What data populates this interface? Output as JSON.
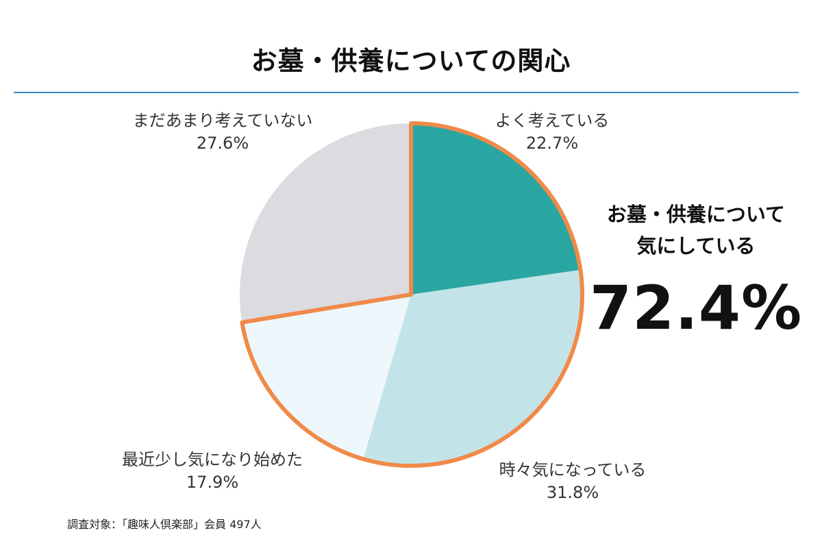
{
  "title": "お墓・供養についての関心",
  "chart_data": {
    "type": "pie",
    "title": "お墓・供養についての関心",
    "slices": [
      {
        "label": "よく考えている",
        "value": 22.7,
        "value_text": "22.7%",
        "color": "#2aa6a2",
        "highlighted": true
      },
      {
        "label": "時々気になっている",
        "value": 31.8,
        "value_text": "31.8%",
        "color": "#c2e4e8",
        "highlighted": true
      },
      {
        "label": "最近少し気になり始めた",
        "value": 17.9,
        "value_text": "17.9%",
        "color": "#eef7fb",
        "highlighted": true
      },
      {
        "label": "まだあまり考えていない",
        "value": 27.6,
        "value_text": "27.6%",
        "color": "#dcdbe0",
        "highlighted": false
      }
    ],
    "start_angle": "12 o'clock",
    "direction": "clockwise",
    "highlight_color": "#f08a48"
  },
  "callout": {
    "line1": "お墓・供養について",
    "line2": "気にしている",
    "value": "72.4%"
  },
  "footnote": "調査対象：「趣味人倶楽部」会員 497人"
}
